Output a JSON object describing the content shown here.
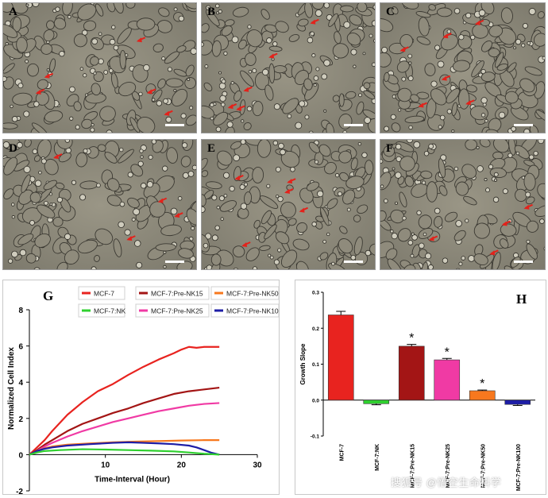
{
  "micrographs": [
    {
      "label": "A",
      "arrows": 5
    },
    {
      "label": "B",
      "arrows": 5
    },
    {
      "label": "C",
      "arrows": 6
    },
    {
      "label": "D",
      "arrows": 4
    },
    {
      "label": "E",
      "arrows": 5
    },
    {
      "label": "F",
      "arrows": 4
    }
  ],
  "colors": {
    "MCF-7": "#e8231f",
    "MCF-7:NK": "#2fd02f",
    "MCF-7:Pre-NK15": "#a31515",
    "MCF-7:Pre-NK25": "#f03aa4",
    "MCF-7:Pre-NK50": "#f7781e",
    "MCF-7:Pre-NK100": "#1d1da6",
    "arrow": "#e3221b"
  },
  "watermark": "搜狐号 @悟空生命科学",
  "chart_data": [
    {
      "panel": "G",
      "type": "line",
      "xlabel": "Time-Interval (Hour)",
      "ylabel": "Normalized Cell Index",
      "xlim": [
        0,
        30
      ],
      "ylim": [
        -2,
        8
      ],
      "xticks": [
        "10",
        "20",
        "30"
      ],
      "yticks": [
        "-2",
        "0",
        "2",
        "4",
        "6",
        "8"
      ],
      "legend": [
        "MCF-7",
        "MCF-7:Pre-NK15",
        "MCF-7:Pre-NK50",
        "MCF-7:NK",
        "MCF-7:Pre-NK25",
        "MCF-7:Pre-NK100"
      ],
      "series": [
        {
          "name": "MCF-7",
          "x": [
            0,
            1,
            2,
            3,
            5,
            7,
            9,
            11,
            13,
            15,
            17,
            19,
            20,
            21,
            22,
            23,
            24,
            25
          ],
          "y": [
            0,
            0.4,
            0.8,
            1.3,
            2.2,
            2.9,
            3.5,
            3.9,
            4.4,
            4.85,
            5.25,
            5.6,
            5.8,
            5.95,
            5.9,
            5.95,
            5.95,
            5.95
          ]
        },
        {
          "name": "MCF-7:Pre-NK15",
          "x": [
            0,
            1,
            2,
            3,
            5,
            7,
            9,
            11,
            13,
            15,
            17,
            19,
            21,
            23,
            25
          ],
          "y": [
            0,
            0.25,
            0.55,
            0.8,
            1.3,
            1.7,
            2.0,
            2.3,
            2.55,
            2.85,
            3.1,
            3.35,
            3.5,
            3.6,
            3.7
          ]
        },
        {
          "name": "MCF-7:Pre-NK25",
          "x": [
            0,
            1,
            2,
            3,
            5,
            7,
            9,
            11,
            13,
            15,
            17,
            19,
            21,
            23,
            25
          ],
          "y": [
            0,
            0.2,
            0.45,
            0.65,
            1.0,
            1.3,
            1.55,
            1.8,
            2.0,
            2.2,
            2.4,
            2.55,
            2.7,
            2.8,
            2.85
          ]
        },
        {
          "name": "MCF-7:Pre-NK50",
          "x": [
            0,
            1,
            2,
            3,
            5,
            8,
            11,
            14,
            17,
            20,
            23,
            25
          ],
          "y": [
            0,
            0.2,
            0.35,
            0.45,
            0.55,
            0.62,
            0.68,
            0.72,
            0.75,
            0.78,
            0.8,
            0.8
          ]
        },
        {
          "name": "MCF-7:Pre-NK100",
          "x": [
            0,
            1,
            2,
            3,
            5,
            8,
            11,
            13,
            15,
            17,
            19,
            21,
            22,
            23,
            24,
            25
          ],
          "y": [
            0,
            0.2,
            0.32,
            0.4,
            0.5,
            0.58,
            0.65,
            0.68,
            0.65,
            0.62,
            0.58,
            0.5,
            0.4,
            0.25,
            0.1,
            0
          ]
        },
        {
          "name": "MCF-7:NK",
          "x": [
            0,
            1,
            2,
            4,
            7,
            10,
            13,
            16,
            19,
            21,
            23,
            25
          ],
          "y": [
            0,
            0.12,
            0.2,
            0.25,
            0.3,
            0.28,
            0.25,
            0.22,
            0.18,
            0.12,
            0.05,
            0
          ]
        }
      ]
    },
    {
      "panel": "H",
      "type": "bar",
      "ylabel": "Growth Slope",
      "ylim": [
        -0.1,
        0.3
      ],
      "yticks": [
        "-0.1",
        "0.0",
        "0.1",
        "0.2",
        "0.3"
      ],
      "categories": [
        "MCF-7",
        "MCF-7:NK",
        "MCF-7:Pre-NK15",
        "MCF-7:Pre-NK25",
        "MCF-7:Pre-NK50",
        "MCF-7:Pre-NK100"
      ],
      "values": [
        0.237,
        -0.01,
        0.15,
        0.112,
        0.026,
        -0.012
      ],
      "errors": [
        0.01,
        0.003,
        0.005,
        0.004,
        0.002,
        0.003
      ],
      "significance": [
        "",
        "",
        "*",
        "*",
        "*",
        ""
      ]
    }
  ]
}
